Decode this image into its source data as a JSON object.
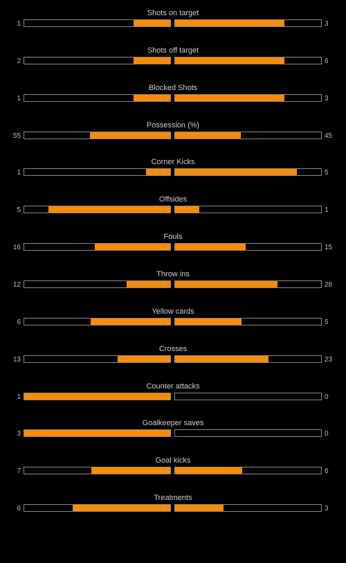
{
  "accent_color": "#ff8c00",
  "stats": [
    {
      "label": "Shots on target",
      "home": "1",
      "away": "3",
      "home_share": 0.25,
      "away_share": 0.75
    },
    {
      "label": "Shots off target",
      "home": "2",
      "away": "6",
      "home_share": 0.25,
      "away_share": 0.75
    },
    {
      "label": "Blocked Shots",
      "home": "1",
      "away": "3",
      "home_share": 0.25,
      "away_share": 0.75
    },
    {
      "label": "Possession (%)",
      "home": "55",
      "away": "45",
      "home_share": 0.55,
      "away_share": 0.45
    },
    {
      "label": "Corner Kicks",
      "home": "1",
      "away": "5",
      "home_share": 0.1667,
      "away_share": 0.8333
    },
    {
      "label": "Offsides",
      "home": "5",
      "away": "1",
      "home_share": 0.8333,
      "away_share": 0.1667
    },
    {
      "label": "Fouls",
      "home": "16",
      "away": "15",
      "home_share": 0.5161,
      "away_share": 0.4839
    },
    {
      "label": "Throw ins",
      "home": "12",
      "away": "28",
      "home_share": 0.3,
      "away_share": 0.7
    },
    {
      "label": "Yellow cards",
      "home": "6",
      "away": "5",
      "home_share": 0.5455,
      "away_share": 0.4545
    },
    {
      "label": "Crosses",
      "home": "13",
      "away": "23",
      "home_share": 0.3611,
      "away_share": 0.6389
    },
    {
      "label": "Counter attacks",
      "home": "1",
      "away": "0",
      "home_share": 1.0,
      "away_share": 0.0
    },
    {
      "label": "Goalkeeper saves",
      "home": "3",
      "away": "0",
      "home_share": 1.0,
      "away_share": 0.0
    },
    {
      "label": "Goal kicks",
      "home": "7",
      "away": "6",
      "home_share": 0.5385,
      "away_share": 0.4615
    },
    {
      "label": "Treatments",
      "home": "6",
      "away": "3",
      "home_share": 0.6667,
      "away_share": 0.3333
    }
  ]
}
